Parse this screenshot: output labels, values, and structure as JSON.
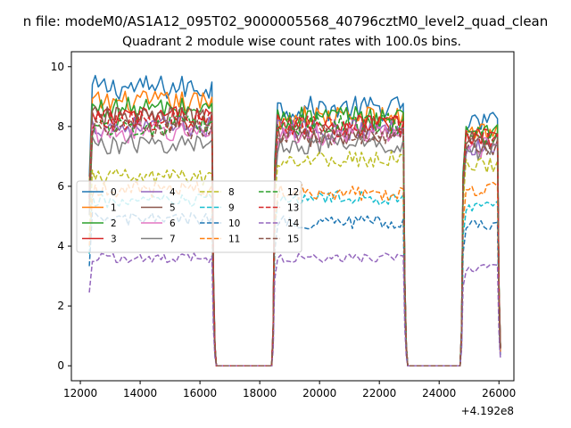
{
  "chart_data": {
    "type": "line",
    "suptitle": "n file: modeM0/AS1A12_095T02_9000005568_40796cztM0_level2_quad_clean",
    "title": "Quadrant 2 module wise count rates with 100.0s bins.",
    "xlabel": "",
    "ylabel": "",
    "x_offset_label": "+4.192e8",
    "xlim": [
      11700,
      26500
    ],
    "ylim": [
      -0.5,
      10.5
    ],
    "x_ticks": [
      12000,
      14000,
      16000,
      18000,
      20000,
      22000,
      24000,
      26000
    ],
    "y_ticks": [
      0,
      2,
      4,
      6,
      8,
      10
    ],
    "grid": false,
    "legend_placement": "center-left",
    "segments": [
      {
        "start": 12300,
        "end": 16400
      },
      {
        "start": 18500,
        "end": 22800
      },
      {
        "start": 24800,
        "end": 25950
      }
    ],
    "gap_value": 0,
    "bin_width": 100,
    "series": [
      {
        "name": "0",
        "color": "#1f77b4",
        "dash": "solid",
        "seg_levels": [
          9.3,
          8.6,
          8.1
        ]
      },
      {
        "name": "1",
        "color": "#ff7f0e",
        "dash": "solid",
        "seg_levels": [
          8.8,
          8.3,
          7.9
        ]
      },
      {
        "name": "2",
        "color": "#2ca02c",
        "dash": "solid",
        "seg_levels": [
          8.6,
          8.3,
          7.9
        ]
      },
      {
        "name": "3",
        "color": "#d62728",
        "dash": "solid",
        "seg_levels": [
          8.3,
          8.1,
          7.6
        ]
      },
      {
        "name": "4",
        "color": "#9467bd",
        "dash": "solid",
        "seg_levels": [
          8.0,
          7.9,
          7.4
        ]
      },
      {
        "name": "5",
        "color": "#8c564b",
        "dash": "solid",
        "seg_levels": [
          8.3,
          7.7,
          7.6
        ]
      },
      {
        "name": "6",
        "color": "#e377c2",
        "dash": "solid",
        "seg_levels": [
          7.8,
          7.7,
          7.3
        ]
      },
      {
        "name": "7",
        "color": "#7f7f7f",
        "dash": "solid",
        "seg_levels": [
          7.4,
          7.4,
          7.2
        ]
      },
      {
        "name": "8",
        "color": "#bcbd22",
        "dash": "dashed",
        "seg_levels": [
          6.3,
          6.9,
          6.7
        ]
      },
      {
        "name": "9",
        "color": "#17becf",
        "dash": "dashed",
        "seg_levels": [
          5.5,
          5.6,
          5.4
        ]
      },
      {
        "name": "10",
        "color": "#1f77b4",
        "dash": "dashed",
        "seg_levels": [
          4.9,
          4.8,
          4.7
        ]
      },
      {
        "name": "11",
        "color": "#ff7f0e",
        "dash": "dashed",
        "seg_levels": [
          5.9,
          5.8,
          5.9
        ]
      },
      {
        "name": "12",
        "color": "#2ca02c",
        "dash": "dashed",
        "seg_levels": [
          8.0,
          8.1,
          7.7
        ]
      },
      {
        "name": "13",
        "color": "#d62728",
        "dash": "dashed",
        "seg_levels": [
          8.2,
          8.0,
          7.6
        ]
      },
      {
        "name": "14",
        "color": "#9467bd",
        "dash": "dashed",
        "seg_levels": [
          3.6,
          3.6,
          3.3
        ]
      },
      {
        "name": "15",
        "color": "#8c564b",
        "dash": "dashed",
        "seg_levels": [
          7.9,
          7.7,
          7.4
        ]
      }
    ]
  }
}
